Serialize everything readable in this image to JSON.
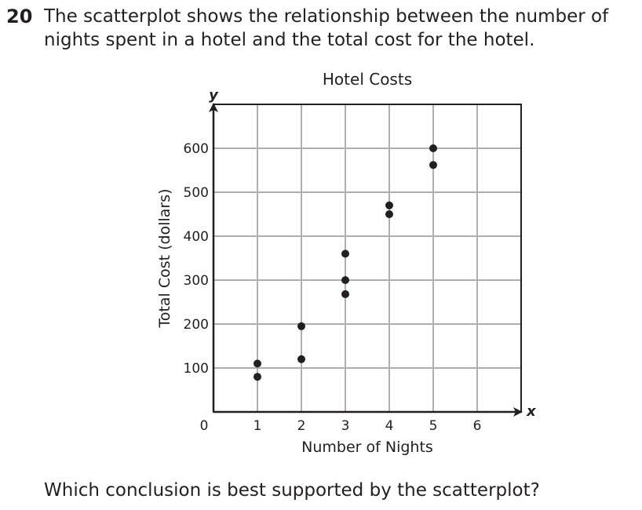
{
  "question": {
    "number": "20",
    "stem_lines": [
      "The scatterplot shows the relationship between the number of",
      "nights spent in a hotel and the total cost for the hotel."
    ],
    "prompt": "Which conclusion is best supported by the scatterplot?"
  },
  "chart_data": {
    "type": "scatter",
    "title": "Hotel Costs",
    "xlabel": "Number of Nights",
    "ylabel": "Total Cost (dollars)",
    "x_axis_letter": "x",
    "y_axis_letter": "y",
    "origin_label": "0",
    "xlim": [
      0,
      6.6
    ],
    "ylim": [
      0,
      700
    ],
    "x_ticks": [
      1,
      2,
      3,
      4,
      5,
      6
    ],
    "y_ticks": [
      100,
      200,
      300,
      400,
      500,
      600
    ],
    "grid": true,
    "points": [
      {
        "x": 1,
        "y": 110
      },
      {
        "x": 1,
        "y": 80
      },
      {
        "x": 2,
        "y": 195
      },
      {
        "x": 2,
        "y": 120
      },
      {
        "x": 3,
        "y": 360
      },
      {
        "x": 3,
        "y": 300
      },
      {
        "x": 3,
        "y": 268
      },
      {
        "x": 4,
        "y": 470
      },
      {
        "x": 4,
        "y": 450
      },
      {
        "x": 5,
        "y": 600
      },
      {
        "x": 5,
        "y": 562
      }
    ],
    "colors": {
      "ink": "#231f20",
      "grid": "#aeaeae"
    }
  }
}
